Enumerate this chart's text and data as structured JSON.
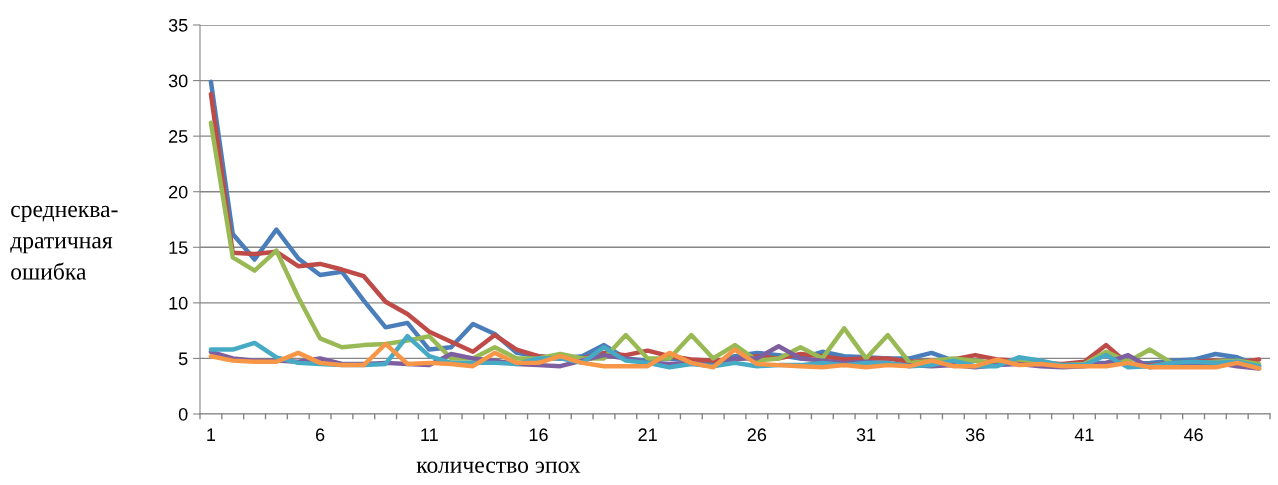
{
  "chart_data": {
    "type": "line",
    "xlabel": "количество эпох",
    "ylabel": "среднеква-\nдратичная\nошибка",
    "ylim": [
      0,
      35
    ],
    "yticks": [
      0,
      5,
      10,
      15,
      20,
      25,
      30,
      35
    ],
    "grid": "y",
    "marker": "none",
    "line_style": "solid",
    "categories": [
      "1",
      null,
      null,
      null,
      null,
      "6",
      null,
      null,
      null,
      null,
      "11",
      null,
      null,
      null,
      null,
      "16",
      null,
      null,
      null,
      null,
      "21",
      null,
      null,
      null,
      null,
      "26",
      null,
      null,
      null,
      null,
      "31",
      null,
      null,
      null,
      null,
      "36",
      null,
      null,
      null,
      null,
      "41",
      null,
      null,
      null,
      null,
      "46",
      null,
      null,
      null
    ],
    "series": [
      {
        "color": "#4a7ebb",
        "values": [
          29.9,
          16.2,
          13.9,
          16.6,
          14,
          12.5,
          12.8,
          10.2,
          7.8,
          8.2,
          5.8,
          6.0,
          8.1,
          7.2,
          5.5,
          5.2,
          5.0,
          5.2,
          6.2,
          5.0,
          4.8,
          5.0,
          4.8,
          4.6,
          5.2,
          5.5,
          5.3,
          5.0,
          5.6,
          5.2,
          5.1,
          5.0,
          5.0,
          5.5,
          4.8,
          4.8,
          4.5,
          4.6,
          4.6,
          4.4,
          4.6,
          4.6,
          4.5,
          4.6,
          4.8,
          4.9,
          5.4,
          5.1,
          4.3
        ]
      },
      {
        "color": "#be4b48",
        "values": [
          28.8,
          14.5,
          14.4,
          14.6,
          13.3,
          13.5,
          13.0,
          12.4,
          10.1,
          9.0,
          7.4,
          6.5,
          5.6,
          7.1,
          5.8,
          5.2,
          5.0,
          5.0,
          5.5,
          5.3,
          5.7,
          5.2,
          4.9,
          4.8,
          4.9,
          5.2,
          5.0,
          5.4,
          5.2,
          4.9,
          5.0,
          5.0,
          4.7,
          4.8,
          4.9,
          5.3,
          4.9,
          4.8,
          4.6,
          4.5,
          4.7,
          6.2,
          4.5,
          4.4,
          4.6,
          4.7,
          4.8,
          4.6,
          4.9
        ]
      },
      {
        "color": "#98b954",
        "values": [
          26.2,
          14.1,
          12.9,
          14.7,
          10.5,
          6.8,
          6.0,
          6.2,
          6.3,
          6.6,
          7.0,
          5.0,
          5.0,
          6.0,
          5.0,
          5.0,
          5.4,
          5.0,
          5.0,
          7.1,
          5.0,
          5.0,
          7.1,
          5.0,
          6.2,
          4.8,
          5.0,
          6.0,
          5.0,
          7.7,
          5.0,
          7.1,
          4.6,
          4.8,
          5.0,
          4.8,
          4.6,
          4.8,
          4.6,
          4.4,
          4.5,
          5.6,
          4.7,
          5.8,
          4.6,
          4.5,
          4.7,
          4.8,
          4.5
        ]
      },
      {
        "color": "#7d5fa0",
        "values": [
          5.6,
          5.0,
          4.8,
          4.8,
          4.7,
          5.0,
          4.5,
          4.5,
          4.6,
          4.5,
          4.4,
          5.4,
          5.0,
          4.8,
          4.5,
          4.4,
          4.3,
          4.8,
          5.3,
          5.0,
          4.6,
          4.5,
          4.6,
          4.3,
          5.0,
          5.0,
          6.1,
          5.0,
          4.8,
          4.6,
          4.7,
          4.5,
          4.4,
          4.3,
          4.4,
          4.2,
          4.4,
          4.5,
          4.3,
          4.2,
          4.3,
          4.6,
          5.3,
          4.2,
          4.5,
          4.5,
          4.6,
          4.3,
          4.1
        ]
      },
      {
        "color": "#46aac5",
        "values": [
          5.8,
          5.8,
          6.4,
          5.1,
          4.6,
          4.5,
          4.4,
          4.4,
          4.5,
          7.0,
          5.2,
          4.6,
          4.6,
          4.6,
          4.5,
          5.0,
          5.0,
          4.6,
          6.0,
          4.8,
          4.6,
          4.2,
          4.5,
          4.3,
          4.6,
          4.3,
          4.4,
          4.4,
          4.6,
          4.4,
          4.6,
          4.6,
          4.3,
          4.4,
          4.8,
          4.3,
          4.3,
          5.1,
          4.8,
          4.4,
          4.4,
          5.3,
          4.2,
          4.3,
          4.6,
          4.7,
          4.6,
          4.7,
          4.3
        ]
      },
      {
        "color": "#f79646",
        "values": [
          5.2,
          4.8,
          4.7,
          4.7,
          5.5,
          4.6,
          4.4,
          4.4,
          6.3,
          4.5,
          4.6,
          4.5,
          4.3,
          5.5,
          4.6,
          4.6,
          5.2,
          4.6,
          4.3,
          4.3,
          4.3,
          5.5,
          4.6,
          4.2,
          5.8,
          4.5,
          4.4,
          4.3,
          4.2,
          4.4,
          4.2,
          4.4,
          4.3,
          4.8,
          4.3,
          4.3,
          4.9,
          4.4,
          4.5,
          4.3,
          4.3,
          4.3,
          4.6,
          4.2,
          4.2,
          4.2,
          4.2,
          4.6,
          4.1
        ]
      }
    ]
  }
}
